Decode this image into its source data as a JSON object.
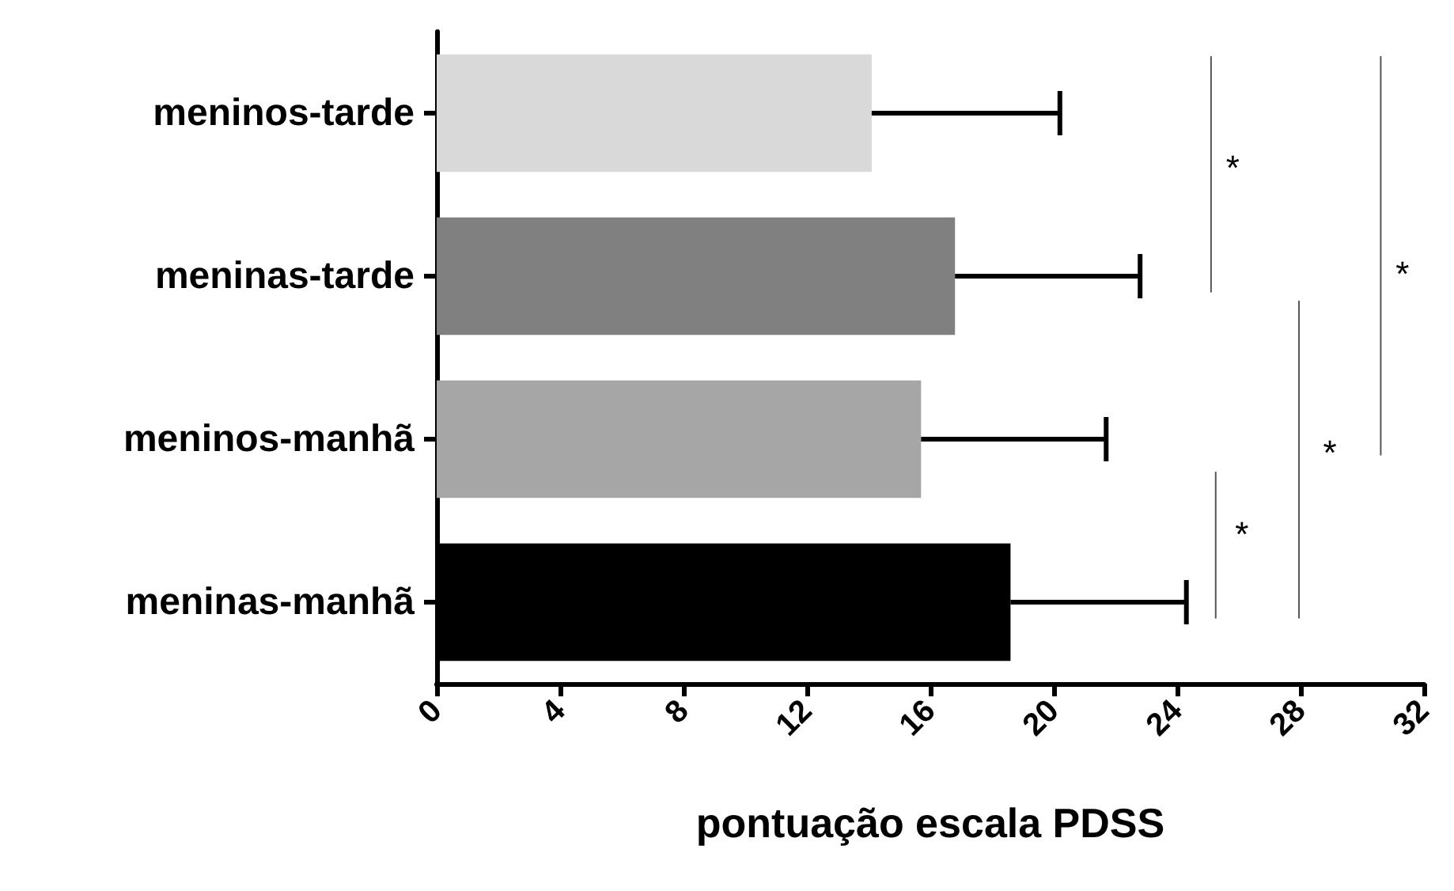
{
  "chart_data": {
    "type": "bar",
    "orientation": "horizontal",
    "xlabel": "pontuação escala PDSS",
    "categories": [
      "meninos-tarde",
      "meninas-tarde",
      "meninos-manhã",
      "meninas-manhã"
    ],
    "values": [
      14.1,
      16.8,
      15.7,
      18.6
    ],
    "colors": [
      "#d9d9d9",
      "#808080",
      "#a6a6a6",
      "#000000"
    ],
    "errors": [
      [
        14.1,
        20.2
      ],
      [
        16.8,
        22.8
      ],
      [
        15.7,
        21.7
      ],
      [
        18.6,
        24.3
      ]
    ],
    "xlim": [
      0,
      32
    ],
    "xticks": [
      0,
      4,
      8,
      12,
      16,
      20,
      24,
      28,
      32
    ],
    "grid": false,
    "annotations": [
      "*",
      "*",
      "*",
      "*"
    ]
  }
}
